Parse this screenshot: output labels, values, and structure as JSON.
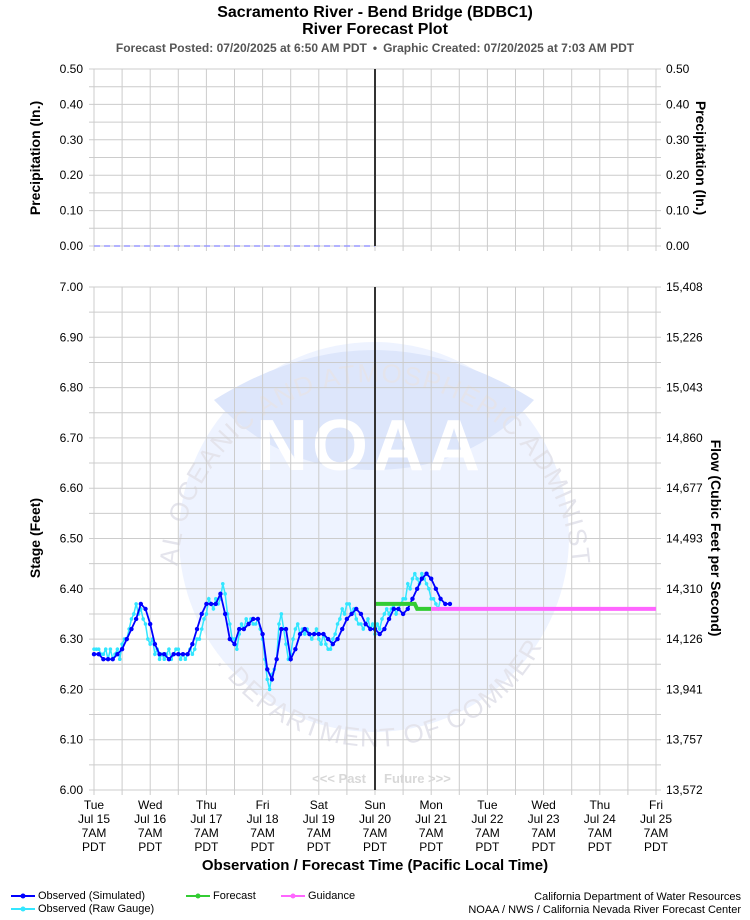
{
  "header": {
    "title_line1": "Sacramento River - Bend Bridge (BDBC1)",
    "title_line2": "River Forecast Plot",
    "posted": "Forecast Posted: 07/20/2025 at 6:50 AM PDT",
    "separator": "•",
    "created": "Graphic Created: 07/20/2025 at 7:03 AM PDT"
  },
  "colors": {
    "observed_simulated": "#0000ff",
    "observed_raw": "#33e6ff",
    "forecast": "#33cc33",
    "guidance": "#ff66ff",
    "now_line": "#333333",
    "grid": "#cccccc",
    "precip": "#9999ff"
  },
  "watermark": {
    "emblem_text": "NOAA",
    "ring_text": "NATIONAL OCEANIC AND ATMOSPHERIC ADMINISTRATION",
    "bottom_text": "U.S. DEPARTMENT OF COMMERCE"
  },
  "chart_data": [
    {
      "type": "line",
      "name": "precipitation",
      "ylabel_left": "Precipitation (In.)",
      "ylabel_right": "Precipitation (In.)",
      "ylim": [
        0,
        0.5
      ],
      "yticks": [
        "0.00",
        "0.10",
        "0.20",
        "0.30",
        "0.40",
        "0.50"
      ],
      "grid": true,
      "series": [
        {
          "x": [
            "07/15 07:00",
            "07/20 07:00"
          ],
          "values": [
            0,
            0
          ]
        }
      ]
    },
    {
      "type": "line",
      "name": "stage-flow",
      "xlabel": "Observation / Forecast Time (Pacific Local Time)",
      "ylabel_left": "Stage (Feet)",
      "ylabel_right": "Flow (Cubic Feet per Second)",
      "ylim": [
        6.0,
        7.0
      ],
      "yticks_left": [
        "6.00",
        "6.10",
        "6.20",
        "6.30",
        "6.40",
        "6.50",
        "6.60",
        "6.70",
        "6.80",
        "6.90",
        "7.00"
      ],
      "yticks_right": [
        "13,572",
        "13,757",
        "13,941",
        "14,126",
        "14,310",
        "14,493",
        "14,677",
        "14,860",
        "15,043",
        "15,226",
        "15,408"
      ],
      "grid": true,
      "xlim": [
        "07/15 07:00",
        "07/25 07:00"
      ],
      "now": "07/20 07:00",
      "past_label": "<<< Past",
      "future_label": "Future >>>",
      "xticks": [
        {
          "day": "Tue",
          "date": "Jul 15",
          "time": "7AM",
          "tz": "PDT"
        },
        {
          "day": "Wed",
          "date": "Jul 16",
          "time": "7AM",
          "tz": "PDT"
        },
        {
          "day": "Thu",
          "date": "Jul 17",
          "time": "7AM",
          "tz": "PDT"
        },
        {
          "day": "Fri",
          "date": "Jul 18",
          "time": "7AM",
          "tz": "PDT"
        },
        {
          "day": "Sat",
          "date": "Jul 19",
          "time": "7AM",
          "tz": "PDT"
        },
        {
          "day": "Sun",
          "date": "Jul 20",
          "time": "7AM",
          "tz": "PDT"
        },
        {
          "day": "Mon",
          "date": "Jul 21",
          "time": "7AM",
          "tz": "PDT"
        },
        {
          "day": "Tue",
          "date": "Jul 22",
          "time": "7AM",
          "tz": "PDT"
        },
        {
          "day": "Wed",
          "date": "Jul 23",
          "time": "7AM",
          "tz": "PDT"
        },
        {
          "day": "Thu",
          "date": "Jul 24",
          "time": "7AM",
          "tz": "PDT"
        },
        {
          "day": "Fri",
          "date": "Jul 25",
          "time": "7AM",
          "tz": "PDT"
        }
      ],
      "series": [
        {
          "name": "Observed (Simulated)",
          "x_start": "07/15 07:00",
          "step_hours": 2,
          "values": [
            6.27,
            6.27,
            6.26,
            6.26,
            6.26,
            6.27,
            6.28,
            6.3,
            6.32,
            6.34,
            6.37,
            6.36,
            6.33,
            6.29,
            6.27,
            6.27,
            6.26,
            6.27,
            6.27,
            6.27,
            6.27,
            6.29,
            6.32,
            6.35,
            6.37,
            6.37,
            6.37,
            6.39,
            6.35,
            6.3,
            6.29,
            6.32,
            6.32,
            6.33,
            6.34,
            6.34,
            6.31,
            6.24,
            6.22,
            6.26,
            6.32,
            6.32,
            6.26,
            6.28,
            6.31,
            6.32,
            6.31,
            6.31,
            6.31,
            6.31,
            6.3,
            6.29,
            6.3,
            6.32,
            6.34,
            6.35,
            6.36,
            6.35,
            6.33,
            6.32,
            6.32,
            6.31,
            6.32,
            6.34,
            6.36,
            6.36,
            6.35,
            6.36,
            6.38,
            6.4,
            6.42,
            6.43,
            6.42,
            6.4,
            6.38,
            6.37,
            6.37
          ]
        },
        {
          "name": "Observed (Raw Gauge)",
          "x_start": "07/15 07:00",
          "step_hours": 1,
          "values": [
            6.28,
            6.28,
            6.28,
            6.27,
            6.27,
            6.28,
            6.26,
            6.28,
            6.26,
            6.27,
            6.28,
            6.26,
            6.29,
            6.3,
            6.3,
            6.32,
            6.34,
            6.35,
            6.37,
            6.35,
            6.36,
            6.34,
            6.33,
            6.3,
            6.29,
            6.3,
            6.27,
            6.28,
            6.26,
            6.27,
            6.26,
            6.27,
            6.28,
            6.26,
            6.27,
            6.28,
            6.28,
            6.26,
            6.27,
            6.26,
            6.27,
            6.28,
            6.27,
            6.28,
            6.3,
            6.3,
            6.32,
            6.34,
            6.35,
            6.38,
            6.37,
            6.36,
            6.38,
            6.37,
            6.38,
            6.41,
            6.39,
            6.35,
            6.33,
            6.3,
            6.3,
            6.28,
            6.31,
            6.33,
            6.32,
            6.34,
            6.33,
            6.34,
            6.33,
            6.33,
            6.34,
            6.32,
            6.3,
            6.26,
            6.22,
            6.2,
            6.23,
            6.24,
            6.26,
            6.33,
            6.35,
            6.32,
            6.29,
            6.26,
            6.27,
            6.3,
            6.32,
            6.33,
            6.31,
            6.32,
            6.31,
            6.32,
            6.31,
            6.3,
            6.31,
            6.32,
            6.3,
            6.29,
            6.31,
            6.29,
            6.28,
            6.28,
            6.3,
            6.31,
            6.33,
            6.34,
            6.36,
            6.35,
            6.37,
            6.37,
            6.35,
            6.36,
            6.34,
            6.33,
            6.33,
            6.32,
            6.33,
            6.34,
            6.32,
            6.33,
            6.31,
            6.33,
            6.32,
            6.34,
            6.35,
            6.36,
            6.35,
            6.36,
            6.37,
            6.35,
            6.36,
            6.37,
            6.38,
            6.38,
            6.41,
            6.4,
            6.42,
            6.43,
            6.42,
            6.41,
            6.43,
            6.42,
            6.41,
            6.4,
            6.38,
            6.38,
            6.37,
            6.36,
            6.38
          ]
        },
        {
          "name": "Forecast",
          "x": [
            "07/20 07:00",
            "07/20 13:00",
            "07/21 00:00",
            "07/21 01:00",
            "07/21 07:00"
          ],
          "values": [
            6.37,
            6.37,
            6.37,
            6.36,
            6.36
          ]
        },
        {
          "name": "Guidance",
          "x": [
            "07/21 07:00",
            "07/25 07:00"
          ],
          "values": [
            6.36,
            6.36
          ]
        }
      ]
    }
  ],
  "legend": {
    "observed_simulated": "Observed (Simulated)",
    "observed_raw": "Observed (Raw Gauge)",
    "forecast": "Forecast",
    "guidance": "Guidance"
  },
  "credits": {
    "line1": "California Department of Water Resources",
    "line2": "NOAA / NWS / California Nevada River Forecast Center"
  }
}
